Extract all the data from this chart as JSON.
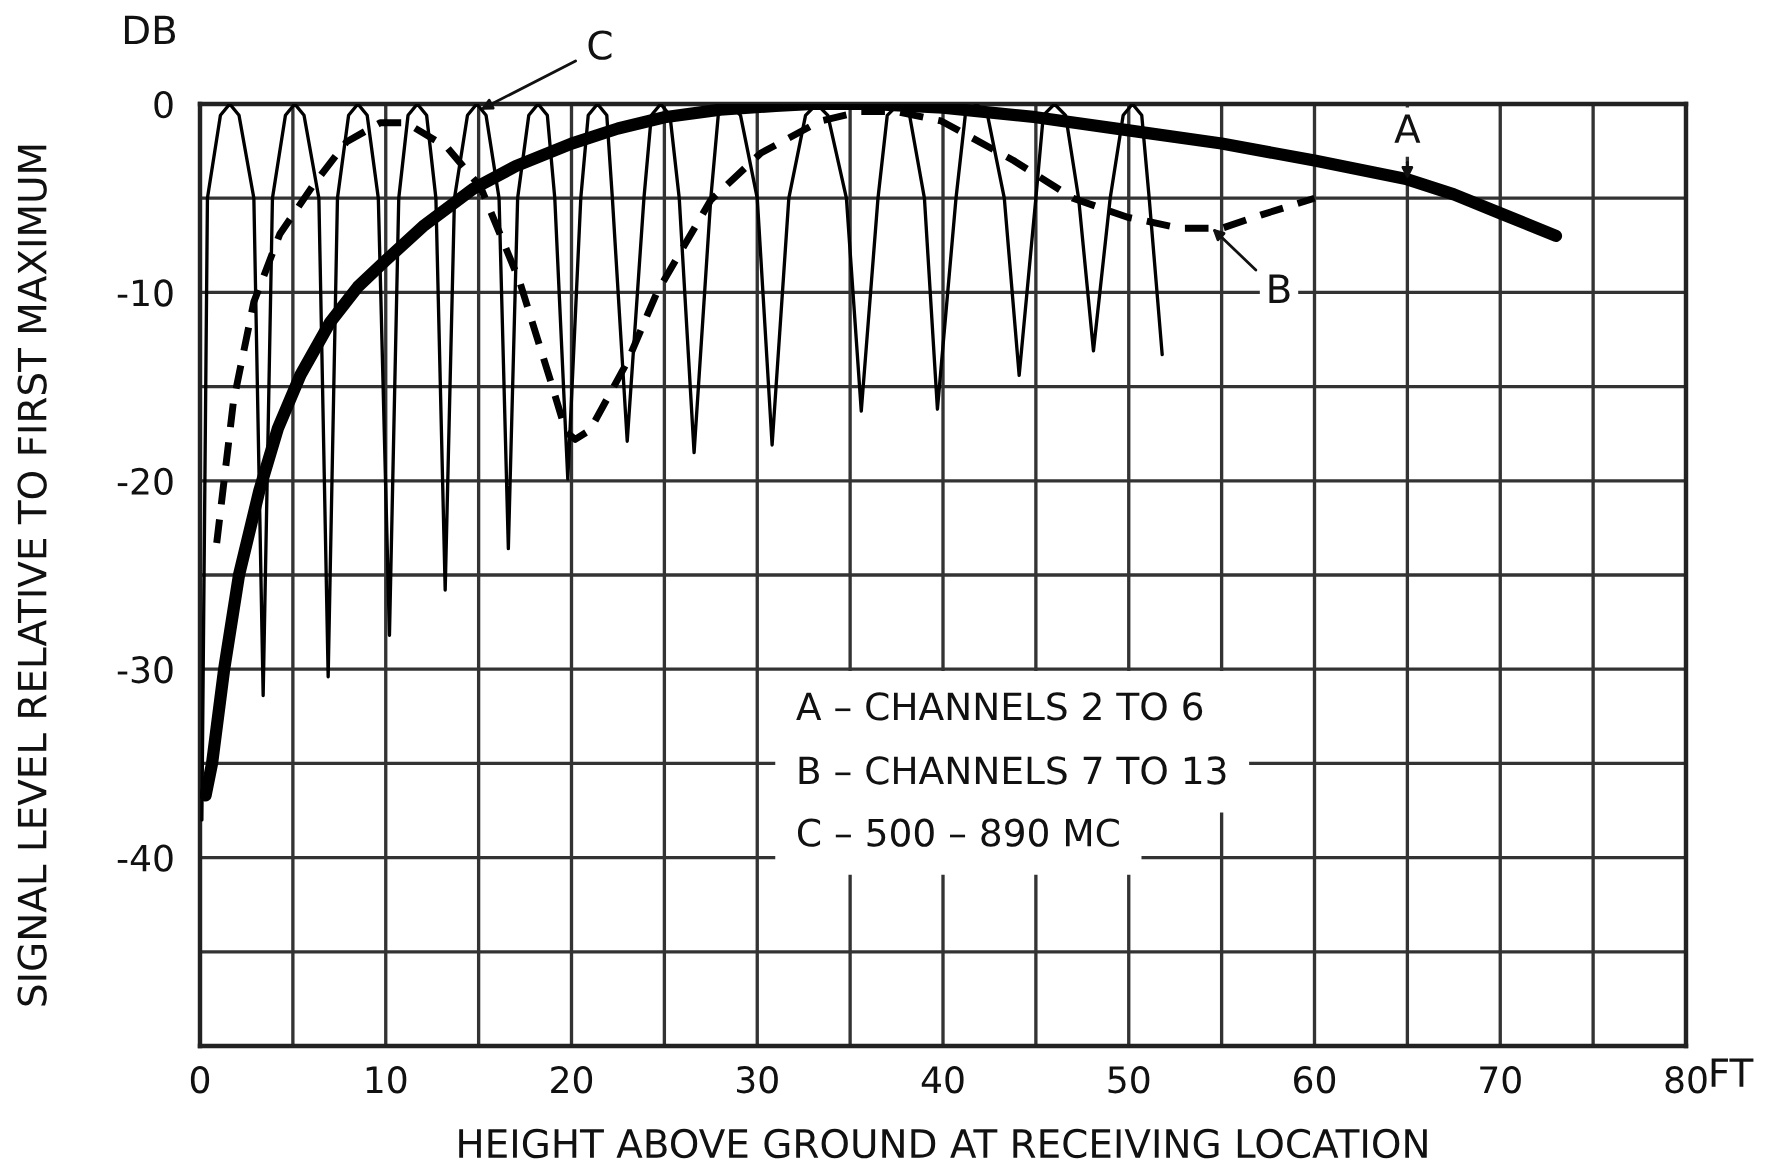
{
  "chart_data": {
    "type": "line",
    "xlabel": "HEIGHT ABOVE GROUND AT RECEIVING LOCATION",
    "ylabel": "SIGNAL LEVEL RELATIVE TO FIRST MAXIMUM",
    "xlim": [
      0,
      80
    ],
    "xticks": [
      0,
      {
        "value": 5,
        "label": null
      },
      10,
      {
        "value": 15,
        "label": null
      },
      20,
      {
        "value": 25,
        "label": null
      },
      30,
      {
        "value": 35,
        "label": null
      },
      40,
      {
        "value": 45,
        "label": null
      },
      50,
      {
        "value": 55,
        "label": null
      },
      60,
      {
        "value": 65,
        "label": null
      },
      70,
      {
        "value": 75,
        "label": null
      },
      80
    ],
    "ylim": [
      -50,
      0
    ],
    "yticks": [
      {
        "value": -45,
        "label": null
      },
      -40,
      {
        "value": -35,
        "label": null
      },
      -30,
      {
        "value": -25,
        "label": null
      },
      -20,
      {
        "value": -15,
        "label": null
      },
      -10,
      {
        "value": -5,
        "label": null
      },
      0
    ],
    "grid": true,
    "series": [
      {
        "color": "#000000",
        "line_style": "solid",
        "x": [
          0.3,
          0.65,
          1.3,
          2.1,
          3.2,
          4.2,
          5.4,
          7.0,
          8.5,
          10.0,
          12.0,
          14.7,
          17.0,
          20.0,
          22.5,
          25.0,
          28.0,
          31.0,
          33.0,
          36.0,
          40.0,
          45.0,
          50.0,
          55.0,
          60.0,
          65.0,
          67.5,
          70.0,
          73.0
        ],
        "values": [
          -36.7,
          -35.0,
          -30.0,
          -25.0,
          -20.5,
          -17.2,
          -14.4,
          -11.6,
          -9.7,
          -8.3,
          -6.5,
          -4.5,
          -3.3,
          -2.1,
          -1.3,
          -0.7,
          -0.3,
          -0.1,
          0,
          0,
          -0.2,
          -0.7,
          -1.4,
          -2.1,
          -3.0,
          -4.0,
          -4.8,
          -5.8,
          -7.0
        ]
      },
      {
        "color": "#000000",
        "line_style": "dashed",
        "x": [
          0.9,
          1.8,
          2.9,
          4.3,
          6.1,
          7.9,
          9.7,
          11.1,
          13.3,
          15.1,
          17.2,
          19.0,
          19.7,
          20.2,
          21.0,
          23.0,
          24.6,
          27.5,
          30.2,
          33.4,
          35.6,
          37.5,
          39.9,
          43.8,
          47.0,
          49.9,
          52.8,
          55.0,
          57.1,
          60.0
        ],
        "values": [
          -23.3,
          -15.8,
          -10.5,
          -6.9,
          -4.3,
          -2.0,
          -1.0,
          -1.0,
          -2.3,
          -4.4,
          -9.4,
          -15.1,
          -17.4,
          -17.8,
          -17.3,
          -13.7,
          -10.0,
          -5.1,
          -2.6,
          -0.9,
          -0.4,
          -0.4,
          -0.9,
          -3.0,
          -5.0,
          -6.0,
          -6.6,
          -6.6,
          -5.9,
          -5.0
        ]
      },
      {
        "color": "#000000",
        "line_style": "solid",
        "x": [
          0.1,
          0.4,
          1.1,
          1.6,
          2.1,
          2.9,
          3.4,
          3.9,
          4.6,
          5.1,
          5.6,
          6.4,
          6.9,
          7.4,
          8.0,
          8.5,
          9.0,
          9.6,
          10.2,
          10.7,
          11.2,
          11.7,
          12.2,
          12.7,
          13.2,
          13.7,
          14.4,
          14.9,
          15.4,
          16.1,
          16.6,
          17.1,
          17.7,
          18.2,
          18.7,
          19.1,
          19.8,
          20.5,
          20.9,
          21.4,
          21.9,
          22.2,
          23.0,
          23.9,
          24.3,
          24.8,
          25.3,
          25.8,
          26.6,
          27.5,
          27.9,
          28.5,
          29.1,
          30.0,
          30.8,
          31.7,
          32.6,
          33.2,
          33.8,
          34.8,
          35.6,
          36.5,
          37.0,
          37.6,
          38.2,
          39.0,
          39.7,
          40.7,
          41.2,
          41.8,
          42.4,
          43.3,
          44.1,
          45.0,
          45.4,
          46.0,
          46.6,
          47.3,
          48.1,
          49.0,
          49.7,
          50.2,
          50.7,
          51.1,
          51.8
        ],
        "values": [
          -38,
          -5,
          -0.6,
          0,
          -0.6,
          -5,
          -31.4,
          -5,
          -0.6,
          0,
          -0.6,
          -5,
          -30.4,
          -5,
          -0.6,
          0,
          -0.6,
          -5,
          -28.2,
          -5,
          -0.6,
          0,
          -0.6,
          -5,
          -25.8,
          -5,
          -0.6,
          0,
          -0.6,
          -5,
          -23.6,
          -5,
          -0.6,
          0,
          -0.6,
          -5,
          -19.9,
          -5,
          -0.6,
          0,
          -0.6,
          -5,
          -17.9,
          -5,
          -0.6,
          0,
          -0.6,
          -5,
          -18.5,
          -5,
          -0.6,
          0,
          -0.6,
          -5,
          -18.1,
          -5,
          -0.6,
          0,
          -0.6,
          -5,
          -16.3,
          -5,
          -0.6,
          0,
          -0.6,
          -5,
          -16.2,
          -5,
          -0.6,
          0,
          -0.6,
          -5,
          -14.4,
          -5,
          -0.6,
          0,
          -0.6,
          -5,
          -13.1,
          -5,
          -0.6,
          0,
          -0.6,
          -5,
          -13.3
        ]
      }
    ],
    "annotations": [
      "DB",
      "FT",
      "A – CHANNELS 2 TO 6",
      "B – CHANNELS 7 TO 13",
      "C – 500 – 890 MC",
      {
        "text": "A",
        "x": 65,
        "y": -4.0
      },
      {
        "text": "B",
        "x": 54.5,
        "y": -6.6
      },
      {
        "text": "C",
        "x": 15.1,
        "y": -0.3
      }
    ]
  }
}
